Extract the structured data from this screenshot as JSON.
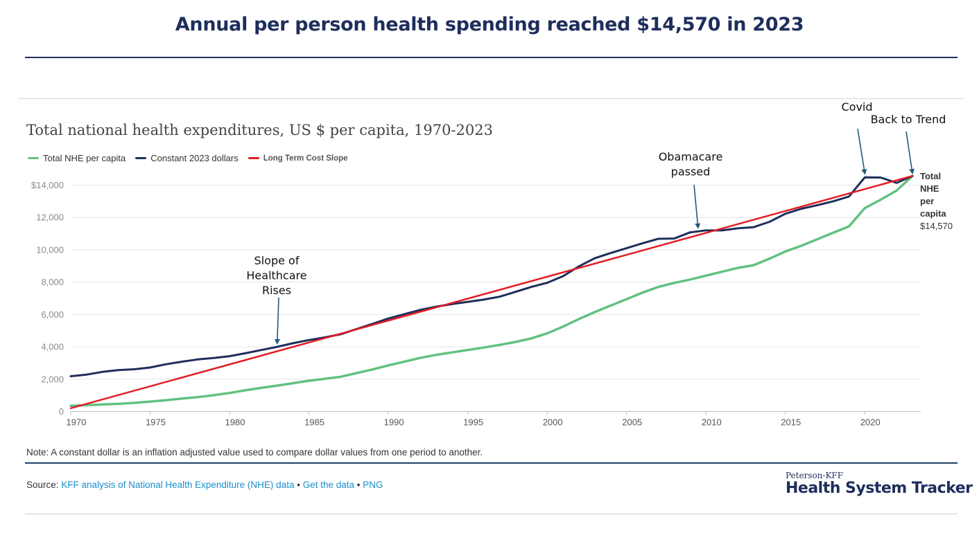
{
  "header": {
    "title": "Annual per person health spending reached $14,570 in 2023"
  },
  "chart_data": {
    "type": "line",
    "title": "Total national health expenditures, US $ per capita, 1970-2023",
    "xlabel": "",
    "ylabel": "",
    "xlim": [
      1970,
      2023
    ],
    "ylim": [
      0,
      15000
    ],
    "y_ticks": [
      0,
      2000,
      4000,
      6000,
      8000,
      10000,
      12000,
      14000
    ],
    "y_tick_labels": [
      "0",
      "2,000",
      "4,000",
      "6,000",
      "8,000",
      "10,000",
      "12,000",
      "$14,000"
    ],
    "x_ticks": [
      1970,
      1975,
      1980,
      1985,
      1990,
      1995,
      2000,
      2005,
      2010,
      2015,
      2020
    ],
    "x_tick_labels": [
      "1970",
      "1975",
      "1980",
      "1985",
      "1990",
      "1995",
      "2000",
      "2005",
      "2010",
      "2015",
      "2020"
    ],
    "grid": true,
    "series": [
      {
        "name": "Total NHE per capita",
        "color": "#62c180",
        "x": [
          1970,
          1971,
          1972,
          1973,
          1974,
          1975,
          1976,
          1977,
          1978,
          1979,
          1980,
          1981,
          1982,
          1983,
          1984,
          1985,
          1986,
          1987,
          1988,
          1989,
          1990,
          1991,
          1992,
          1993,
          1994,
          1995,
          1996,
          1997,
          1998,
          1999,
          2000,
          2001,
          2002,
          2003,
          2004,
          2005,
          2006,
          2007,
          2008,
          2009,
          2010,
          2011,
          2012,
          2013,
          2014,
          2015,
          2016,
          2017,
          2018,
          2019,
          2020,
          2021,
          2022,
          2023
        ],
        "values": [
          353,
          388,
          432,
          472,
          531,
          610,
          698,
          795,
          885,
          1004,
          1145,
          1312,
          1462,
          1600,
          1752,
          1900,
          2020,
          2150,
          2370,
          2600,
          2850,
          3080,
          3310,
          3500,
          3650,
          3800,
          3950,
          4120,
          4300,
          4520,
          4830,
          5250,
          5720,
          6150,
          6550,
          6950,
          7350,
          7700,
          7950,
          8160,
          8400,
          8640,
          8880,
          9050,
          9450,
          9900,
          10250,
          10650,
          11050,
          11450,
          12580,
          13100,
          13660,
          14570
        ]
      },
      {
        "name": "Constant 2023 dollars",
        "color": "#1e2e5c",
        "x": [
          1970,
          1971,
          1972,
          1973,
          1974,
          1975,
          1976,
          1977,
          1978,
          1979,
          1980,
          1981,
          1982,
          1983,
          1984,
          1985,
          1986,
          1987,
          1988,
          1989,
          1990,
          1991,
          1992,
          1993,
          1994,
          1995,
          1996,
          1997,
          1998,
          1999,
          2000,
          2001,
          2002,
          2003,
          2004,
          2005,
          2006,
          2007,
          2008,
          2009,
          2010,
          2011,
          2012,
          2013,
          2014,
          2015,
          2016,
          2017,
          2018,
          2019,
          2020,
          2021,
          2022,
          2023
        ],
        "values": [
          2180,
          2280,
          2450,
          2560,
          2610,
          2720,
          2920,
          3080,
          3220,
          3310,
          3420,
          3600,
          3800,
          4000,
          4220,
          4420,
          4580,
          4780,
          5100,
          5420,
          5750,
          6020,
          6280,
          6480,
          6640,
          6780,
          6920,
          7100,
          7400,
          7700,
          7960,
          8370,
          8980,
          9480,
          9800,
          10100,
          10400,
          10680,
          10700,
          11080,
          11200,
          11200,
          11330,
          11400,
          11730,
          12230,
          12540,
          12760,
          13000,
          13300,
          14480,
          14470,
          14140,
          14570
        ]
      },
      {
        "name": "Long Term Cost Slope",
        "color": "#e31b23",
        "x": [
          1970,
          2023
        ],
        "values": [
          200,
          14570
        ]
      }
    ],
    "annotations": [
      {
        "lines": [
          "Slope of",
          "Healthcare",
          "Rises"
        ],
        "arrow_to": [
          1983,
          4050
        ]
      },
      {
        "lines": [
          "Obamacare",
          "passed"
        ],
        "arrow_to": [
          2009.5,
          11200
        ]
      },
      {
        "lines": [
          "Covid"
        ],
        "arrow_to": [
          2020,
          14550
        ]
      },
      {
        "lines": [
          "Back to Trend"
        ],
        "arrow_to": [
          2023,
          14570
        ]
      }
    ],
    "end_label": {
      "title_lines": [
        "Total",
        "NHE",
        "per",
        "capita"
      ],
      "value": "$14,570"
    }
  },
  "footer": {
    "note": "Note: A constant dollar is an inflation adjusted value used to compare dollar values from one period to another.",
    "source_label": "Source:",
    "source_link": "KFF analysis of National Health Expenditure (NHE) data",
    "separator": "•",
    "get_data_link": "Get the data",
    "png_link": "PNG",
    "logo_small": "Peterson-KFF",
    "logo_big": "Health System Tracker"
  }
}
